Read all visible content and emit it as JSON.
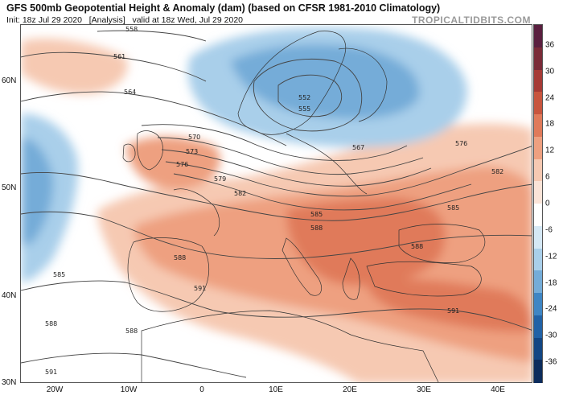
{
  "header": {
    "title": "GFS 500mb Geopotential Height & Anomaly (dam) (based on CFSR 1981-2010 Climatology)",
    "init": "Init: 18z Jul 29 2020",
    "analysis": "[Analysis]",
    "valid": "valid at 18z Wed, Jul 29 2020"
  },
  "brand": "TROPICALTIDBITS.COM",
  "axes": {
    "lat_labels": [
      "60N",
      "50N",
      "40N",
      "30N"
    ],
    "lon_labels": [
      "20W",
      "10W",
      "0",
      "10E",
      "20E",
      "30E",
      "40E"
    ]
  },
  "colorbar": {
    "labels": [
      "36",
      "30",
      "24",
      "18",
      "12",
      "6",
      "0",
      "-6",
      "-12",
      "-18",
      "-24",
      "-30",
      "-36"
    ],
    "colors": [
      "#5a1f3f",
      "#7a2b38",
      "#a63a35",
      "#c8553e",
      "#e07a5a",
      "#eea080",
      "#f6c9b2",
      "#fbe4d8",
      "#ffffff",
      "#d5e8f5",
      "#a9cfea",
      "#74acd8",
      "#3f86c4",
      "#2162a6",
      "#134683",
      "#0c2c5c"
    ]
  },
  "contours": {
    "labels": [
      "558",
      "561",
      "564",
      "570",
      "573",
      "576",
      "579",
      "582",
      "585",
      "588",
      "591",
      "552",
      "555",
      "567"
    ]
  }
}
